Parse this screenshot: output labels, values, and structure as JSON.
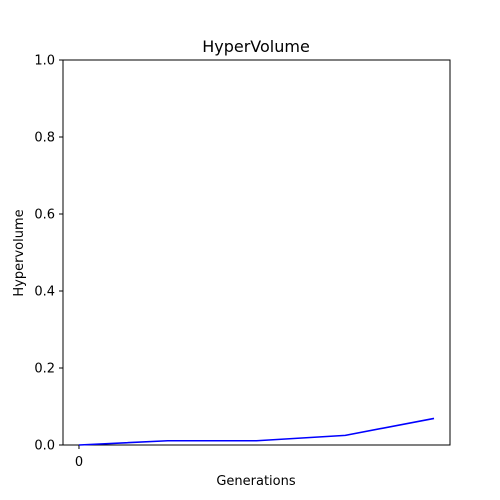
{
  "chart_data": {
    "type": "line",
    "title": "HyperVolume",
    "xlabel": "Generations",
    "ylabel": "Hypervolume",
    "x": [
      0,
      1,
      2,
      3,
      4
    ],
    "xticks": [
      {
        "value": 0,
        "label": "0"
      }
    ],
    "xlim": [
      -0.18,
      4.18
    ],
    "ylim": [
      0,
      1
    ],
    "yticks": [
      {
        "value": 0.0,
        "label": "0.0"
      },
      {
        "value": 0.2,
        "label": "0.2"
      },
      {
        "value": 0.4,
        "label": "0.4"
      },
      {
        "value": 0.6,
        "label": "0.6"
      },
      {
        "value": 0.8,
        "label": "0.8"
      },
      {
        "value": 1.0,
        "label": "1.0"
      }
    ],
    "series": [
      {
        "values": [
          0.0,
          0.011,
          0.011,
          0.025,
          0.069
        ],
        "color": "#0000ff"
      }
    ],
    "grid": false,
    "legend": "none"
  }
}
